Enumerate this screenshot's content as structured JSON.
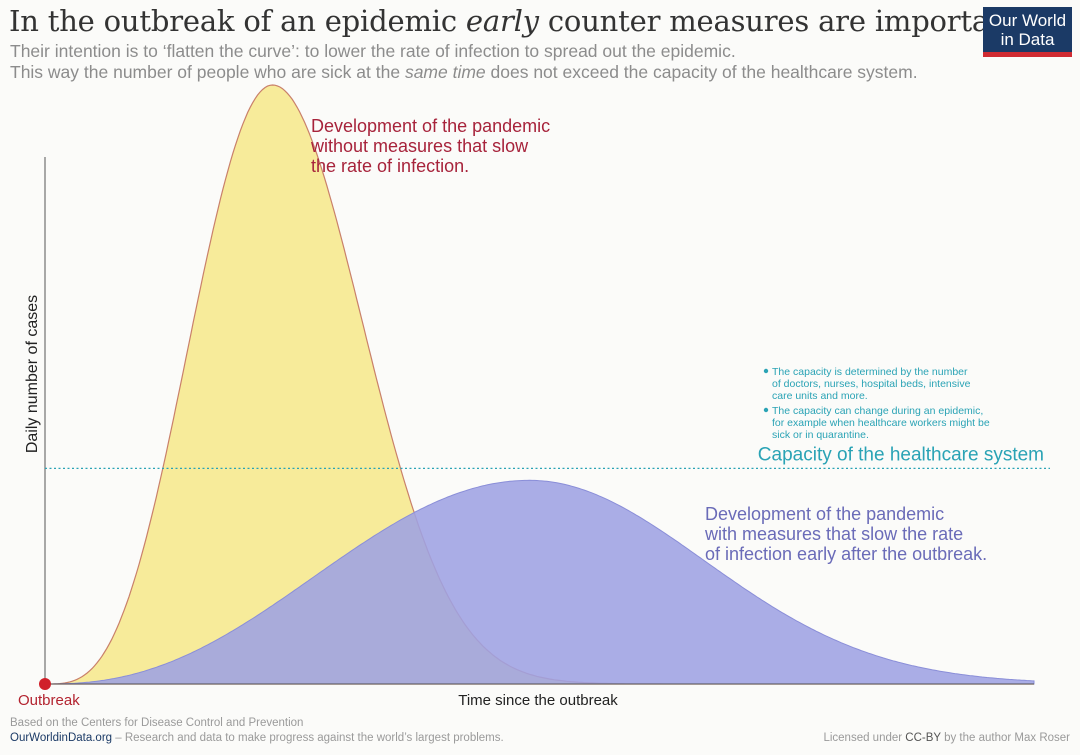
{
  "header": {
    "title_part1": "In the outbreak of an epidemic ",
    "title_emph": "early",
    "title_part2": " counter measures are important",
    "subtitle_line1": "Their intention is to ‘flatten the curve’: to lower the rate of infection to spread out the epidemic.",
    "subtitle_line2_a": "This way the number of people who are sick at the ",
    "subtitle_line2_emph": "same time",
    "subtitle_line2_b": " does not exceed the capacity of the healthcare system."
  },
  "logo": {
    "line1": "Our World",
    "line2": "in Data"
  },
  "chart_data": {
    "type": "area",
    "xlabel": "Time since the outbreak",
    "ylabel": "Daily number of cases",
    "origin_label": "Outbreak",
    "axis_ticks": "none",
    "series": [
      {
        "name": "Development of the pandemic without measures that slow the rate of infection.",
        "label_lines": [
          "Development of the pandemic",
          "without measures that slow",
          "the rate of infection."
        ],
        "shape": "tall narrow peak early after the outbreak",
        "peak_relative_height": 1.0,
        "peak_time_relative": 0.23,
        "color": "#f7eb9a",
        "stroke": "#c9806a",
        "label_color": "#a7233b"
      },
      {
        "name": "Development of the pandemic with measures that slow the rate of infection early after the outbreak.",
        "label_lines": [
          "Development of the pandemic",
          "with measures that slow the rate",
          "of infection early after the outbreak."
        ],
        "shape": "low wide peak, later, stays below capacity",
        "peak_relative_height": 0.34,
        "peak_time_relative": 0.49,
        "color": "#9ea2e3",
        "stroke": "#8a8ed8",
        "label_color": "#6a6bb8"
      }
    ],
    "capacity_line": {
      "label": "Capacity of the healthcare system",
      "relative_height": 0.36,
      "style": "dotted",
      "color": "#2aa3b5",
      "notes": [
        [
          "The capacity is determined by the number",
          "of doctors, nurses, hospital beds, intensive",
          "care units and more."
        ],
        [
          "The capacity can change during an epidemic,",
          "for example when healthcare workers might be",
          "sick or in quarantine."
        ]
      ]
    },
    "grid": false,
    "legend": "inline labels"
  },
  "footer": {
    "source": "Based on the Centers for Disease Control and Prevention",
    "site": "OurWorldinData.org",
    "tagline": " – Research and data to make progress against the world’s largest problems.",
    "license_prefix": "Licensed under ",
    "license_cc": "CC-BY",
    "license_suffix": " by the author Max Roser"
  }
}
